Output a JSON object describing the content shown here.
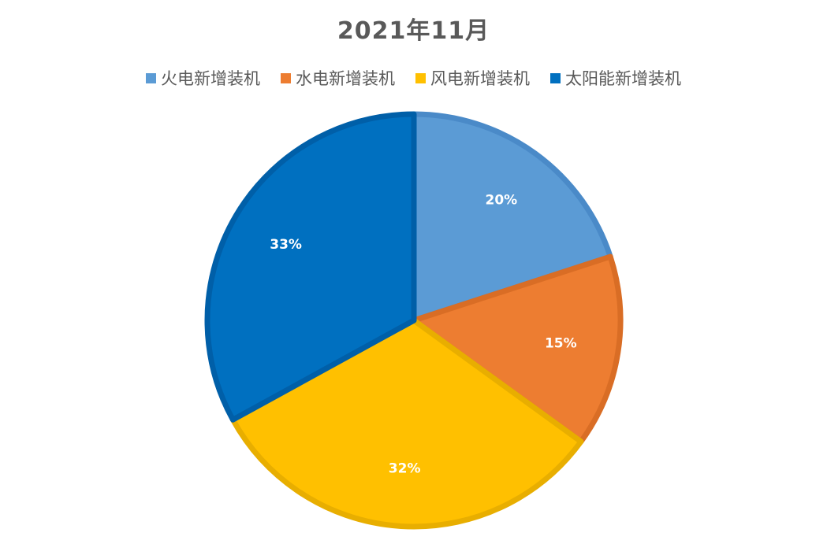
{
  "chart_data": {
    "type": "pie",
    "title": "2021年11月",
    "legend_position": "top",
    "slices": [
      {
        "name": "火电新增装机",
        "value": 20,
        "label": "20%",
        "color": "#5B9BD5",
        "edge": "#4A8AC8"
      },
      {
        "name": "水电新增装机",
        "value": 15,
        "label": "15%",
        "color": "#ED7D31",
        "edge": "#D96D25"
      },
      {
        "name": "风电新增装机",
        "value": 32,
        "label": "32%",
        "color": "#FFC000",
        "edge": "#E8AE00"
      },
      {
        "name": "太阳能新增装机",
        "value": 33,
        "label": "33%",
        "color": "#0070C0",
        "edge": "#005FA8"
      }
    ]
  }
}
